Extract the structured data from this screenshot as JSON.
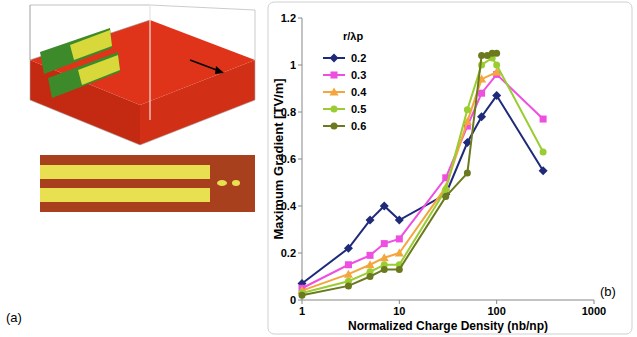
{
  "chart_data": {
    "type": "line",
    "x_label": "Normalized Charge Density (nb/np)",
    "y_label": "Maximum Gradient [TV/m]",
    "legend_title": "r/λp",
    "log": "x",
    "grid": false,
    "legend": "top-left",
    "xlim": [
      1,
      1000
    ],
    "ylim": [
      0,
      1.2
    ],
    "xticks": [
      1,
      10,
      100,
      1000
    ],
    "yticks": [
      0,
      0.2,
      0.4,
      0.6,
      0.8,
      1,
      1.2
    ],
    "series": [
      {
        "name": "0.2",
        "color": "#1f2a7a",
        "marker": "diamond",
        "x": [
          1,
          3,
          5,
          7,
          10,
          30,
          50,
          70,
          100,
          300
        ],
        "values": [
          0.07,
          0.22,
          0.34,
          0.4,
          0.34,
          0.45,
          0.67,
          0.78,
          0.87,
          0.55
        ]
      },
      {
        "name": "0.3",
        "color": "#ee4fe0",
        "marker": "square",
        "x": [
          1,
          3,
          5,
          7,
          10,
          30,
          50,
          70,
          100,
          300
        ],
        "values": [
          0.05,
          0.15,
          0.19,
          0.24,
          0.26,
          0.52,
          0.74,
          0.88,
          0.96,
          0.77
        ]
      },
      {
        "name": "0.4",
        "color": "#f4a53c",
        "marker": "triangle",
        "x": [
          1,
          3,
          5,
          7,
          10,
          30,
          50,
          70,
          100
        ],
        "values": [
          0.04,
          0.11,
          0.15,
          0.18,
          0.2,
          0.48,
          0.76,
          0.94,
          0.97
        ]
      },
      {
        "name": "0.5",
        "color": "#9acd32",
        "marker": "circle",
        "x": [
          1,
          3,
          5,
          7,
          10,
          30,
          50,
          70,
          90,
          100,
          300
        ],
        "values": [
          0.03,
          0.08,
          0.12,
          0.15,
          0.15,
          0.47,
          0.81,
          1.0,
          1.03,
          1.0,
          0.63
        ]
      },
      {
        "name": "0.6",
        "color": "#6b7a1e",
        "marker": "circle",
        "x": [
          1,
          3,
          5,
          7,
          10,
          30,
          50,
          70,
          80,
          90,
          100
        ],
        "values": [
          0.02,
          0.06,
          0.1,
          0.13,
          0.13,
          0.44,
          0.54,
          1.04,
          1.04,
          1.05,
          1.05
        ]
      }
    ]
  },
  "figure": {
    "panel_labels": [
      "(a)",
      "(b)"
    ]
  }
}
